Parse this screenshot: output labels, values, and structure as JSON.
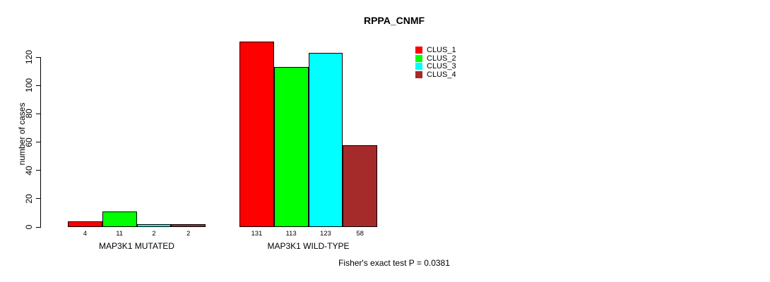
{
  "chart_data": {
    "type": "bar",
    "title": "RPPA_CNMF",
    "xlabel": "",
    "ylabel": "number of cases",
    "annotation": "Fisher's exact test P = 0.0381",
    "categories": [
      "MAP3K1 MUTATED",
      "MAP3K1 WILD-TYPE"
    ],
    "series": [
      {
        "name": "CLUS_1",
        "color": "#ff0000",
        "values": [
          4,
          131
        ]
      },
      {
        "name": "CLUS_2",
        "color": "#00ff00",
        "values": [
          11,
          113
        ]
      },
      {
        "name": "CLUS_3",
        "color": "#00ffff",
        "values": [
          2,
          123
        ]
      },
      {
        "name": "CLUS_4",
        "color": "#a52a2a",
        "values": [
          2,
          58
        ]
      }
    ],
    "y_ticks": [
      0,
      20,
      40,
      60,
      80,
      100,
      120
    ],
    "ylim": [
      0,
      120
    ],
    "grid": false,
    "legend_position": "top-right",
    "bar_border_color": "#000000",
    "background_color": "#ffffff"
  }
}
